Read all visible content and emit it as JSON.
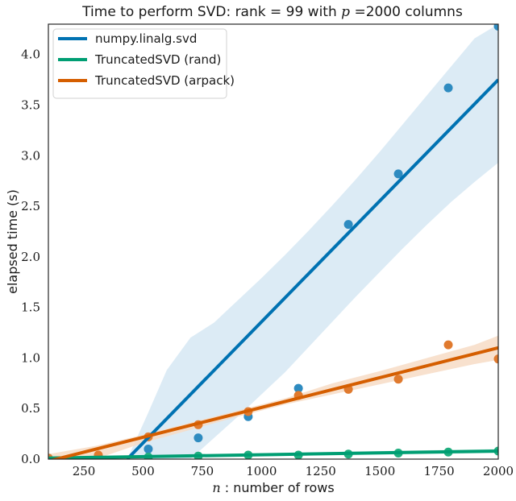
{
  "chart_data": {
    "type": "scatter",
    "title_text": "Time to perform SVD: rank = 99 with",
    "title_math": "p",
    "title_tail": "=2000 columns",
    "xlabel_math": "n",
    "xlabel_text": ": number of rows",
    "ylabel": "elapsed time (s)",
    "xlim": [
      100,
      2000
    ],
    "ylim": [
      0.0,
      4.3
    ],
    "xticks": [
      250,
      500,
      750,
      1000,
      1250,
      1500,
      1750,
      2000
    ],
    "xtick_labels": [
      "250",
      "500",
      "750",
      "1000",
      "1250",
      "1500",
      "1750",
      "2000"
    ],
    "yticks": [
      0.0,
      0.5,
      1.0,
      1.5,
      2.0,
      2.5,
      3.0,
      3.5,
      4.0
    ],
    "ytick_labels": [
      "0.0",
      "0.5",
      "1.0",
      "1.5",
      "2.0",
      "2.5",
      "3.0",
      "3.5",
      "4.0"
    ],
    "grid": false,
    "legend_position": "top-left",
    "series": [
      {
        "name": "numpy.linalg.svd",
        "color": "#0072b2",
        "point_color": "#2e8bc0",
        "band_color": "#d6e8f3",
        "x": [
          100,
          311,
          522,
          733,
          944,
          1156,
          1367,
          1578,
          1789,
          2000
        ],
        "y": [
          0.0,
          0.03,
          0.1,
          0.21,
          0.42,
          0.7,
          2.32,
          2.82,
          3.67,
          4.28
        ],
        "fit": [
          [
            433,
            0.0
          ],
          [
            2000,
            3.75
          ]
        ],
        "band_x": [
          433,
          520,
          600,
          700,
          800,
          900,
          1000,
          1100,
          1200,
          1300,
          1400,
          1500,
          1600,
          1700,
          1800,
          1900,
          2000
        ],
        "band_lower": [
          0.0,
          0.0,
          0.0,
          0.0,
          0.21,
          0.42,
          0.64,
          0.86,
          1.11,
          1.36,
          1.61,
          1.85,
          2.09,
          2.32,
          2.54,
          2.74,
          2.93
        ],
        "band_upper": [
          0.0,
          0.45,
          0.88,
          1.2,
          1.35,
          1.57,
          1.79,
          2.02,
          2.26,
          2.51,
          2.77,
          3.04,
          3.32,
          3.6,
          3.88,
          4.16,
          4.3
        ]
      },
      {
        "name": "TruncatedSVD (rand)",
        "color": "#009e73",
        "point_color": "#1fae7f",
        "band_color": "#c8ebde",
        "x": [
          100,
          311,
          522,
          733,
          944,
          1156,
          1367,
          1578,
          1789,
          2000
        ],
        "y": [
          0.01,
          0.02,
          0.02,
          0.03,
          0.04,
          0.04,
          0.05,
          0.06,
          0.07,
          0.08
        ],
        "fit": [
          [
            100,
            0.01
          ],
          [
            2000,
            0.08
          ]
        ],
        "band_x": [
          100,
          2000
        ],
        "band_lower": [
          0.0,
          0.06
        ],
        "band_upper": [
          0.02,
          0.1
        ]
      },
      {
        "name": "TruncatedSVD (arpack)",
        "color": "#d55e00",
        "point_color": "#e07a2e",
        "band_color": "#f7dcc6",
        "x": [
          100,
          311,
          522,
          733,
          944,
          1156,
          1367,
          1578,
          1789,
          2000
        ],
        "y": [
          0.01,
          0.04,
          0.22,
          0.34,
          0.47,
          0.63,
          0.69,
          0.79,
          1.13,
          0.99
        ],
        "fit": [
          [
            100,
            -0.02
          ],
          [
            2000,
            1.1
          ]
        ],
        "band_x": [
          100,
          300,
          500,
          700,
          900,
          1100,
          1300,
          1500,
          1700,
          1900,
          2000
        ],
        "band_lower": [
          0.0,
          0.0,
          0.16,
          0.29,
          0.42,
          0.54,
          0.64,
          0.74,
          0.84,
          0.94,
          0.98
        ],
        "band_upper": [
          0.05,
          0.13,
          0.24,
          0.36,
          0.48,
          0.6,
          0.75,
          0.87,
          1.0,
          1.13,
          1.22
        ]
      }
    ]
  }
}
